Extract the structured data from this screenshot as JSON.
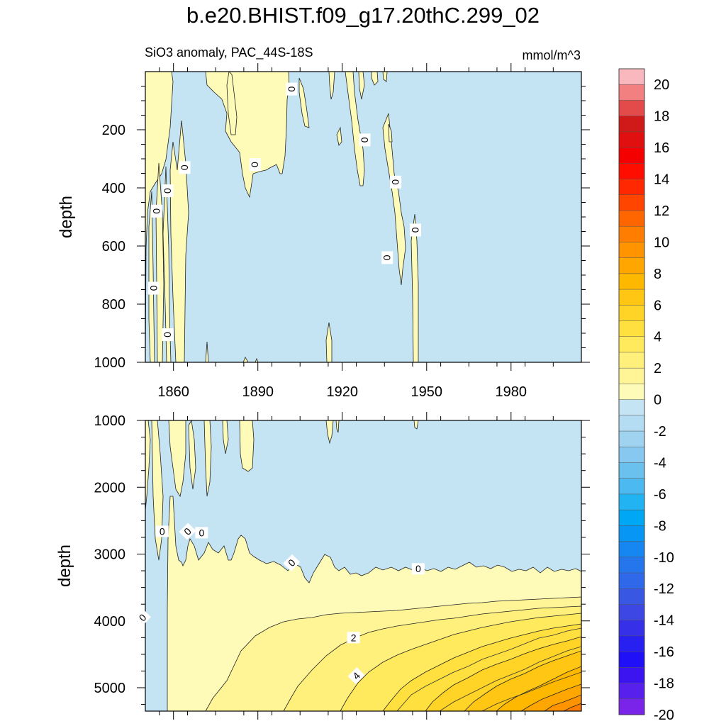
{
  "title": "b.e20.BHIST.f09_g17.20thC.299_02",
  "subtitle_left": "SiO3 anomaly, PAC_44S-18S",
  "subtitle_right": "mmol/m^3",
  "colors": {
    "negative_fill": "#c4e4f4",
    "zero_fill": "#fefab8",
    "contour_line": "#000000"
  },
  "chart_data": [
    {
      "type": "heatmap",
      "panel": "upper",
      "xlabel": "",
      "ylabel": "depth",
      "xlim": [
        1850,
        2005
      ],
      "ylim": [
        1000,
        0
      ],
      "x_ticks": [
        1860,
        1890,
        1920,
        1950,
        1980
      ],
      "x_tick_labels": [
        "1860",
        "1890",
        "1920",
        "1950",
        "1980"
      ],
      "y_ticks": [
        200,
        400,
        600,
        800,
        1000
      ],
      "y_tick_labels": [
        "200",
        "400",
        "600",
        "800",
        "1000"
      ],
      "contour_labels": [
        {
          "text": "0",
          "year": 1902,
          "depth": 60
        },
        {
          "text": "0",
          "year": 1864,
          "depth": 330
        },
        {
          "text": "0",
          "year": 1889,
          "depth": 320
        },
        {
          "text": "0",
          "year": 1858,
          "depth": 410
        },
        {
          "text": "0",
          "year": 1854,
          "depth": 480
        },
        {
          "text": "0",
          "year": 1853,
          "depth": 745
        },
        {
          "text": "0",
          "year": 1858,
          "depth": 905
        },
        {
          "text": "0",
          "year": 1928,
          "depth": 235
        },
        {
          "text": "0",
          "year": 1939,
          "depth": 380
        },
        {
          "text": "0",
          "year": 1936,
          "depth": 640
        },
        {
          "text": "0",
          "year": 1946,
          "depth": 545
        }
      ],
      "regions": [
        {
          "level": "0-1",
          "years": [
            1852,
            1855,
            1860,
            1864,
            1866
          ],
          "depth_extent": [
            0,
            1000
          ]
        },
        {
          "level": "0-1",
          "years": [
            1882,
            1908
          ],
          "depth_extent": [
            0,
            430
          ]
        },
        {
          "level": "0-1",
          "years": [
            1923,
            1947
          ],
          "depth_extent": [
            0,
            1000
          ]
        }
      ]
    },
    {
      "type": "heatmap",
      "panel": "lower",
      "xlabel": "",
      "ylabel": "depth",
      "xlim": [
        1850,
        2005
      ],
      "ylim": [
        5350,
        1000
      ],
      "x_ticks": [
        1860,
        1890,
        1920,
        1950,
        1980
      ],
      "y_ticks": [
        1000,
        2000,
        3000,
        4000,
        5000
      ],
      "y_tick_labels": [
        "1000",
        "2000",
        "3000",
        "4000",
        "5000"
      ],
      "contour_labels": [
        {
          "text": "0",
          "year": 1856,
          "depth": 2660
        },
        {
          "text": "0",
          "year": 1865,
          "depth": 2660
        },
        {
          "text": "0",
          "year": 1870,
          "depth": 2680
        },
        {
          "text": "0",
          "year": 1902,
          "depth": 3130
        },
        {
          "text": "0",
          "year": 1947,
          "depth": 3220
        },
        {
          "text": "0",
          "year": 1849,
          "depth": 3950
        },
        {
          "text": "2",
          "year": 1924,
          "depth": 4250
        },
        {
          "text": "4",
          "year": 1925,
          "depth": 4820
        }
      ],
      "zero_contour_depths": {
        "years": [
          1850,
          1862,
          1870,
          1880,
          1890,
          1900,
          1910,
          1920,
          1930,
          1940,
          1950,
          1960,
          1970,
          1980,
          1990,
          2005
        ],
        "depth": [
          2200,
          2600,
          2750,
          2850,
          2900,
          3000,
          3100,
          3200,
          3250,
          3280,
          3270,
          3250,
          3260,
          3240,
          3230,
          3200
        ]
      }
    }
  ],
  "colorbar": {
    "labels": [
      "20",
      "18",
      "16",
      "14",
      "12",
      "10",
      "8",
      "6",
      "4",
      "2",
      "0",
      "-2",
      "-4",
      "-6",
      "-8",
      "-10",
      "-12",
      "-14",
      "-16",
      "-18",
      "-20"
    ],
    "colors": [
      "#f9b8be",
      "#f28080",
      "#e34b4b",
      "#d01a1a",
      "#e01010",
      "#f40000",
      "#ff0e00",
      "#ff2800",
      "#ff4500",
      "#ff6600",
      "#ff7d00",
      "#ff9300",
      "#ffa600",
      "#ffb800",
      "#ffc714",
      "#ffd427",
      "#ffe03e",
      "#ffea5e",
      "#fff07c",
      "#fff596",
      "#fefab8",
      "#c4e4f4",
      "#b4dcf2",
      "#9fd3f0",
      "#86c8ef",
      "#6ac1ee",
      "#4cbaf0",
      "#22b4f2",
      "#00a7f4",
      "#0896f5",
      "#1686f1",
      "#2576ed",
      "#2f69ea",
      "#3858e4",
      "#3d47e3",
      "#3631e9",
      "#281ff1",
      "#2010f7",
      "#3b14f0",
      "#5820ec",
      "#7a24ea"
    ]
  }
}
